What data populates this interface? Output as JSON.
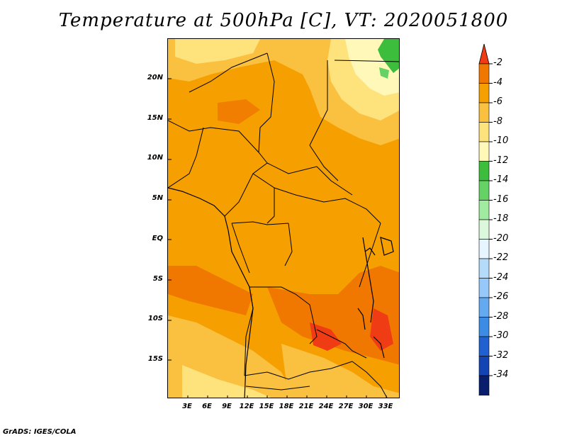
{
  "title": "Temperature at 500hPa [C], VT: 2020051800",
  "credit": "GrADS: IGES/COLA",
  "lat_ticks": [
    "20N",
    "15N",
    "10N",
    "5N",
    "EQ",
    "5S",
    "10S",
    "15S"
  ],
  "lon_ticks": [
    "3E",
    "6E",
    "9E",
    "12E",
    "15E",
    "18E",
    "21E",
    "24E",
    "27E",
    "30E",
    "33E"
  ],
  "colorbar": {
    "labels": [
      "-2",
      "-4",
      "-6",
      "-8",
      "-10",
      "-12",
      "-14",
      "-16",
      "-18",
      "-20",
      "-22",
      "-24",
      "-26",
      "-28",
      "-30",
      "-32",
      "-34"
    ],
    "colors": [
      "#f03c14",
      "#f07800",
      "#f5a000",
      "#fac040",
      "#fee27c",
      "#fff8b8",
      "#3cbe3c",
      "#64d264",
      "#a0eba0",
      "#dcf8dc",
      "#e6f5ff",
      "#b4dcfa",
      "#96c8fa",
      "#64aaf0",
      "#3c8ce6",
      "#2060d0",
      "#1444b4",
      "#0a1e6e",
      "#e8e4ff"
    ]
  }
}
